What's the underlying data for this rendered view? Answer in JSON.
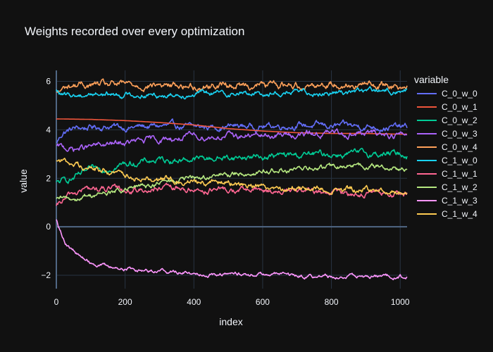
{
  "chart_data": {
    "type": "line",
    "title": "Weights recorded over every optimization",
    "xlabel": "index",
    "ylabel": "value",
    "xlim": [
      0,
      1020
    ],
    "ylim": [
      -2.55,
      6.45
    ],
    "xticks": [
      0,
      200,
      400,
      600,
      800,
      1000
    ],
    "yticks": [
      -2,
      0,
      2,
      4,
      6
    ],
    "grid": true,
    "legend_title": "variable",
    "legend_position": "right",
    "background": "#111111",
    "series": [
      {
        "name": "C_0_w_0",
        "color": "#636efa",
        "noise": 0.08,
        "points": [
          [
            0,
            3.45
          ],
          [
            20,
            3.9
          ],
          [
            50,
            4.05
          ],
          [
            100,
            4.1
          ],
          [
            150,
            4.15
          ],
          [
            200,
            4.1
          ],
          [
            300,
            4.15
          ],
          [
            400,
            4.1
          ],
          [
            500,
            4.15
          ],
          [
            600,
            4.15
          ],
          [
            700,
            4.2
          ],
          [
            800,
            4.15
          ],
          [
            900,
            4.15
          ],
          [
            1000,
            4.1
          ],
          [
            1020,
            4.1
          ]
        ]
      },
      {
        "name": "C_0_w_1",
        "color": "#ef553b",
        "noise": 0.0,
        "points": [
          [
            0,
            4.45
          ],
          [
            100,
            4.43
          ],
          [
            200,
            4.38
          ],
          [
            300,
            4.3
          ],
          [
            400,
            4.2
          ],
          [
            500,
            4.05
          ],
          [
            600,
            3.95
          ],
          [
            700,
            3.88
          ],
          [
            800,
            3.85
          ],
          [
            900,
            3.85
          ],
          [
            1000,
            3.82
          ],
          [
            1020,
            3.82
          ]
        ]
      },
      {
        "name": "C_0_w_2",
        "color": "#00cc96",
        "noise": 0.08,
        "points": [
          [
            0,
            1.8
          ],
          [
            50,
            2.0
          ],
          [
            100,
            2.3
          ],
          [
            200,
            2.6
          ],
          [
            300,
            2.75
          ],
          [
            400,
            2.8
          ],
          [
            500,
            2.85
          ],
          [
            600,
            2.9
          ],
          [
            700,
            2.95
          ],
          [
            800,
            3.0
          ],
          [
            900,
            3.0
          ],
          [
            1000,
            3.0
          ],
          [
            1020,
            3.0
          ]
        ]
      },
      {
        "name": "C_0_w_3",
        "color": "#ab63fa",
        "noise": 0.08,
        "points": [
          [
            0,
            3.3
          ],
          [
            50,
            3.2
          ],
          [
            100,
            3.3
          ],
          [
            200,
            3.45
          ],
          [
            300,
            3.6
          ],
          [
            400,
            3.7
          ],
          [
            500,
            3.75
          ],
          [
            600,
            3.75
          ],
          [
            700,
            3.8
          ],
          [
            800,
            3.85
          ],
          [
            900,
            3.85
          ],
          [
            1000,
            3.8
          ],
          [
            1020,
            3.8
          ]
        ]
      },
      {
        "name": "C_0_w_4",
        "color": "#ffa15a",
        "noise": 0.09,
        "points": [
          [
            0,
            5.5
          ],
          [
            30,
            5.75
          ],
          [
            60,
            5.85
          ],
          [
            100,
            5.85
          ],
          [
            200,
            5.85
          ],
          [
            300,
            5.85
          ],
          [
            400,
            5.8
          ],
          [
            500,
            5.85
          ],
          [
            600,
            5.85
          ],
          [
            700,
            5.85
          ],
          [
            800,
            5.9
          ],
          [
            900,
            5.85
          ],
          [
            1000,
            5.85
          ],
          [
            1020,
            5.8
          ]
        ]
      },
      {
        "name": "C_1_w_0",
        "color": "#19d3f3",
        "noise": 0.07,
        "points": [
          [
            0,
            5.6
          ],
          [
            20,
            5.4
          ],
          [
            50,
            5.4
          ],
          [
            100,
            5.5
          ],
          [
            200,
            5.45
          ],
          [
            300,
            5.45
          ],
          [
            400,
            5.5
          ],
          [
            500,
            5.5
          ],
          [
            600,
            5.5
          ],
          [
            700,
            5.55
          ],
          [
            800,
            5.55
          ],
          [
            900,
            5.6
          ],
          [
            1000,
            5.6
          ],
          [
            1020,
            5.6
          ]
        ]
      },
      {
        "name": "C_1_w_1",
        "color": "#ff6692",
        "noise": 0.08,
        "points": [
          [
            0,
            0.8
          ],
          [
            40,
            1.3
          ],
          [
            80,
            1.55
          ],
          [
            150,
            1.55
          ],
          [
            200,
            1.5
          ],
          [
            300,
            1.55
          ],
          [
            400,
            1.55
          ],
          [
            500,
            1.5
          ],
          [
            600,
            1.5
          ],
          [
            700,
            1.45
          ],
          [
            800,
            1.4
          ],
          [
            900,
            1.4
          ],
          [
            1000,
            1.35
          ],
          [
            1020,
            1.35
          ]
        ]
      },
      {
        "name": "C_1_w_2",
        "color": "#b6e880",
        "noise": 0.07,
        "points": [
          [
            0,
            1.1
          ],
          [
            50,
            1.15
          ],
          [
            100,
            1.3
          ],
          [
            200,
            1.5
          ],
          [
            300,
            1.8
          ],
          [
            400,
            2.0
          ],
          [
            500,
            2.15
          ],
          [
            600,
            2.3
          ],
          [
            700,
            2.35
          ],
          [
            800,
            2.45
          ],
          [
            900,
            2.5
          ],
          [
            1000,
            2.4
          ],
          [
            1020,
            2.35
          ]
        ]
      },
      {
        "name": "C_1_w_3",
        "color": "#ff97ff",
        "noise": 0.05,
        "points": [
          [
            0,
            0.35
          ],
          [
            10,
            -0.1
          ],
          [
            30,
            -0.7
          ],
          [
            60,
            -1.15
          ],
          [
            100,
            -1.45
          ],
          [
            150,
            -1.65
          ],
          [
            200,
            -1.72
          ],
          [
            300,
            -1.8
          ],
          [
            400,
            -1.9
          ],
          [
            500,
            -1.95
          ],
          [
            600,
            -1.95
          ],
          [
            700,
            -2.0
          ],
          [
            800,
            -2.05
          ],
          [
            900,
            -2.05
          ],
          [
            1000,
            -2.05
          ],
          [
            1020,
            -2.1
          ]
        ]
      },
      {
        "name": "C_1_w_4",
        "color": "#fecb52",
        "noise": 0.08,
        "points": [
          [
            0,
            2.8
          ],
          [
            50,
            2.6
          ],
          [
            100,
            2.4
          ],
          [
            200,
            2.15
          ],
          [
            300,
            2.0
          ],
          [
            400,
            1.9
          ],
          [
            500,
            1.8
          ],
          [
            600,
            1.7
          ],
          [
            700,
            1.6
          ],
          [
            800,
            1.55
          ],
          [
            900,
            1.5
          ],
          [
            1000,
            1.45
          ],
          [
            1020,
            1.4
          ]
        ]
      }
    ]
  }
}
